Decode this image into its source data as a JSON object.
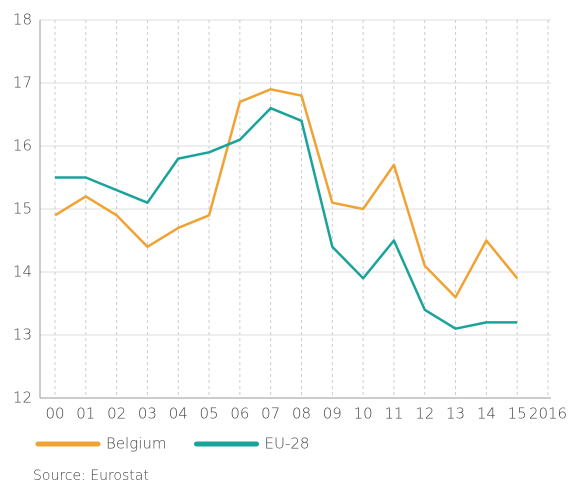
{
  "chart_data": {
    "type": "line",
    "categories": [
      "00",
      "01",
      "02",
      "03",
      "04",
      "05",
      "06",
      "07",
      "08",
      "09",
      "10",
      "11",
      "12",
      "13",
      "14",
      "15",
      "2016"
    ],
    "series": [
      {
        "name": "Belgium",
        "color": "#f0a332",
        "values": [
          14.9,
          15.2,
          14.9,
          14.4,
          14.7,
          14.9,
          16.7,
          16.9,
          16.8,
          15.1,
          15.0,
          15.7,
          14.1,
          13.6,
          14.5,
          13.9,
          null
        ]
      },
      {
        "name": "EU-28",
        "color": "#1aa39a",
        "values": [
          15.5,
          15.5,
          15.3,
          15.1,
          15.8,
          15.9,
          16.1,
          16.6,
          16.4,
          14.4,
          13.9,
          14.5,
          13.4,
          13.1,
          13.2,
          13.2,
          null
        ]
      }
    ],
    "ylim": [
      12,
      18
    ],
    "yticks": [
      12,
      13,
      14,
      15,
      16,
      17,
      18
    ],
    "grid": true,
    "legend": "bottom-left",
    "source": "Source: Eurostat"
  }
}
